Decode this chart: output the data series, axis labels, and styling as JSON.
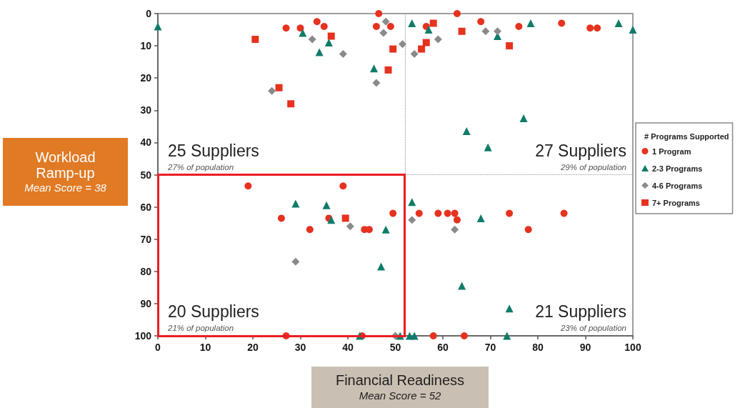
{
  "chart_data": {
    "type": "scatter",
    "xlabel": "Financial Readiness\nMean Score = 52",
    "ylabel": "Workload Ramp-up\nMean Score = 38",
    "legend_title": "# Programs Supported",
    "xlim": [
      0,
      100
    ],
    "xticks": [
      0,
      10,
      20,
      30,
      40,
      50,
      60,
      70,
      80,
      90,
      100
    ],
    "ylim": [
      100,
      0
    ],
    "yticks": [
      0,
      10,
      20,
      30,
      40,
      50,
      60,
      70,
      80,
      90,
      100
    ],
    "legend": "right",
    "series": [
      {
        "name": "1 Program",
        "color": "#e6321f",
        "marker": "circle",
        "x": [
          27,
          30,
          33.5,
          35,
          46.5,
          46,
          49,
          56.5,
          63,
          68,
          76,
          85,
          91,
          92.5,
          19,
          39,
          26,
          32,
          36,
          43.5,
          44.5,
          49.5,
          27,
          43,
          55,
          59,
          61,
          62.5,
          63,
          74,
          85.5,
          78,
          58,
          64.5
        ],
        "values": [
          4.5,
          4.5,
          2.5,
          4,
          0,
          4,
          4,
          4,
          0,
          2.5,
          4,
          3,
          4.5,
          4.5,
          53.5,
          53.5,
          63.5,
          67,
          63.5,
          67,
          67,
          62,
          100,
          100,
          62,
          62,
          62,
          62,
          64,
          62,
          62,
          67,
          100,
          100
        ]
      },
      {
        "name": "2-3 Programs",
        "color": "#0f7c69",
        "marker": "triangle",
        "x": [
          0,
          30.5,
          34,
          36,
          45.5,
          53.5,
          57,
          71.5,
          78.5,
          97,
          100,
          77,
          65,
          69.5,
          29,
          35.5,
          36.5,
          48,
          47,
          42.5,
          51,
          53.5,
          68,
          64,
          74,
          73.5,
          53,
          54
        ],
        "values": [
          4,
          6,
          12,
          9,
          17,
          3,
          5,
          7,
          3,
          3,
          5,
          32.5,
          36.5,
          41.5,
          59,
          59.5,
          64,
          67,
          78.5,
          100,
          100,
          58.5,
          63.5,
          84.5,
          91.5,
          100,
          100,
          100
        ]
      },
      {
        "name": "4-6 Programs",
        "color": "#8a8a8a",
        "marker": "diamond",
        "x": [
          32.5,
          39,
          24,
          48,
          47.5,
          46,
          51.5,
          54,
          59,
          69,
          71.5,
          40.5,
          29,
          50,
          53.5,
          62.5
        ],
        "values": [
          8,
          12.5,
          24,
          2.5,
          6,
          21.5,
          9.5,
          12.5,
          8,
          5.5,
          5.5,
          66,
          77,
          100,
          64,
          67
        ]
      },
      {
        "name": "7+ Programs",
        "color": "#e6321f",
        "marker": "square",
        "x": [
          20.5,
          36.5,
          25.5,
          28,
          49.5,
          48.5,
          58,
          64,
          55.5,
          56.5,
          74,
          39.5
        ],
        "values": [
          8,
          7,
          23,
          28,
          11,
          17.5,
          3,
          5.5,
          11,
          9,
          10,
          63.5
        ]
      }
    ],
    "ref_lines": [
      {
        "axis": "x",
        "value": 52,
        "line_style": "dotted",
        "color": "#9a9a9a"
      },
      {
        "axis": "y",
        "value": 50,
        "line_style": "dotted",
        "color": "#9a9a9a"
      }
    ],
    "annotations": [
      "25 Suppliers",
      "27% of population",
      "27 Suppliers",
      "29% of population",
      "20 Suppliers",
      "21% of population",
      "21 Suppliers",
      "23% of population"
    ]
  }
}
